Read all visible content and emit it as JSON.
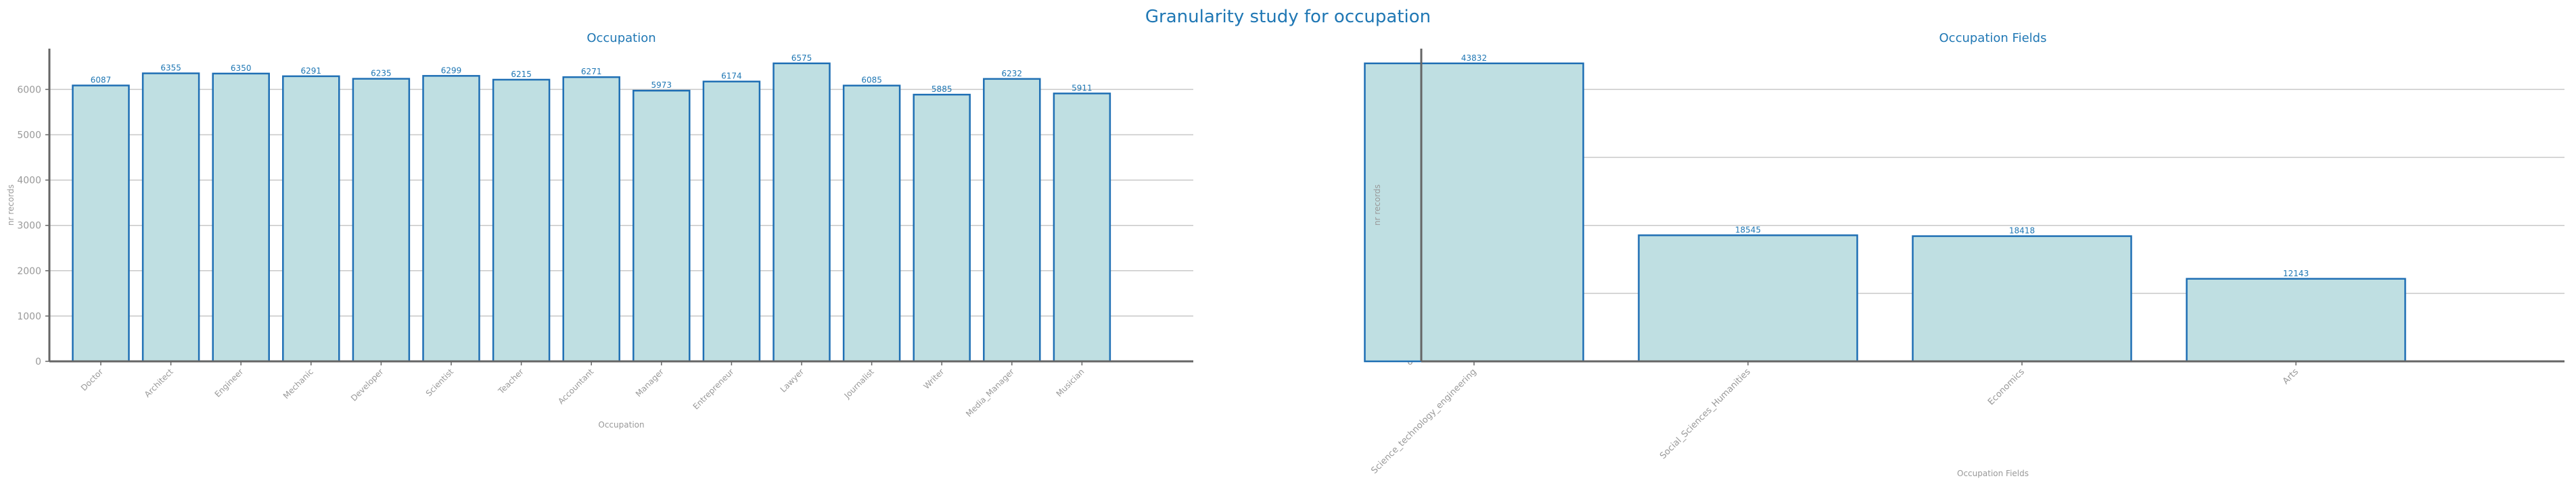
{
  "page": {
    "suptitle": "Granularity study for occupation"
  },
  "colors": {
    "title": "#1f77b4",
    "bar_fill": "#bfdfe2",
    "bar_stroke": "#1f6fb4",
    "axis": "#666666",
    "grid": "#c8c8c8",
    "label": "#999999"
  },
  "chart_data": [
    {
      "type": "bar",
      "title": "Occupation",
      "xlabel": "Occupation",
      "ylabel": "nr records",
      "categories": [
        "Doctor",
        "Architect",
        "Engineer",
        "Mechanic",
        "Developer",
        "Scientist",
        "Teacher",
        "Accountant",
        "Manager",
        "Entrepreneur",
        "Lawyer",
        "Journalist",
        "Writer",
        "Media_Manager",
        "Musician"
      ],
      "values": [
        6087,
        6355,
        6350,
        6291,
        6235,
        6299,
        6215,
        6271,
        5973,
        6174,
        6575,
        6085,
        5885,
        6232,
        5911
      ],
      "ylim": [
        0,
        6900
      ],
      "yticks": [
        0,
        1000,
        2000,
        3000,
        4000,
        5000,
        6000
      ],
      "grid": "y"
    },
    {
      "type": "bar",
      "title": "Occupation Fields",
      "xlabel": "Occupation Fields",
      "ylabel": "nr records",
      "categories": [
        "Science_technology_engineering",
        "Social_Sciences_Humanities",
        "Economics",
        "Arts"
      ],
      "values": [
        43832,
        18545,
        18418,
        12143
      ],
      "ylim": [
        0,
        46000
      ],
      "yticks": [
        0,
        10000,
        20000,
        30000,
        40000
      ],
      "grid": "y"
    }
  ]
}
